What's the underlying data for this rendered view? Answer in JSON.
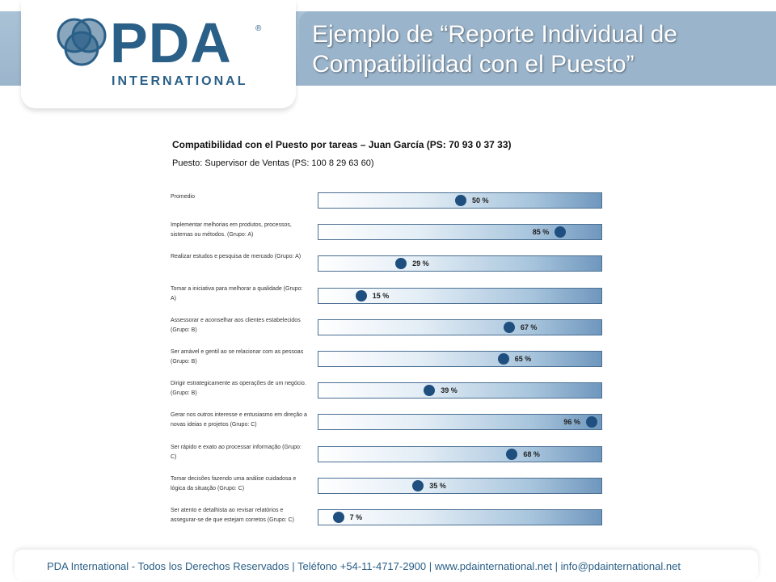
{
  "header": {
    "logo_text": "PDA",
    "logo_registered": "®",
    "logo_subtext": "INTERNATIONAL",
    "title": "Ejemplo de “Reporte Individual de Compatibilidad con el Puesto”"
  },
  "colors": {
    "header_band": "#9ab4cb",
    "brand_blue": "#2a5f87",
    "dot": "#1f4f7e",
    "bar_border": "#4b6f93"
  },
  "chart_data": {
    "type": "bar",
    "title": "Compatibilidad con el Puesto por tareas – Juan García (PS: 70 93 0 37 33)",
    "subtitle": "Puesto: Supervisor de Ventas (PS: 100 8 29 63 60)",
    "unit": "%",
    "xlim": [
      0,
      100
    ],
    "categories": [
      "Promedio",
      "Implementar melhorias em produtos, processos, sistemas ou métodos. (Grupo: A)",
      "Realizar estudos e pesquisa de mercado (Grupo: A)",
      "Tomar a iniciativa para melhorar a qualidade (Grupo: A)",
      "Assessorar e aconselhar aos clientes estabelecidos (Grupo: B)",
      "Ser amável e gentil ao se relacionar com as pessoas (Grupo: B)",
      "Dirigir estrategicamente as operações de um negócio. (Grupo: B)",
      "Gerar nos outros interesse e entusiasmo em direção a novas ideias e projetos (Grupo: C)",
      "Ser rápido e exato ao processar informação (Grupo: C)",
      "Tomar decisões fazendo uma análise cuidadosa e lógica da situação (Grupo: C)",
      "Ser atento e detalhista ao revisar relatórios e assegurar-se de que estejam corretos (Grupo: C)"
    ],
    "values": [
      50,
      85,
      29,
      15,
      67,
      65,
      39,
      96,
      68,
      35,
      7
    ]
  },
  "footer": {
    "text": "PDA International - Todos los Derechos Reservados | Teléfono +54-11-4717-2900 | www.pdainternational.net  | info@pdainternational.net"
  }
}
